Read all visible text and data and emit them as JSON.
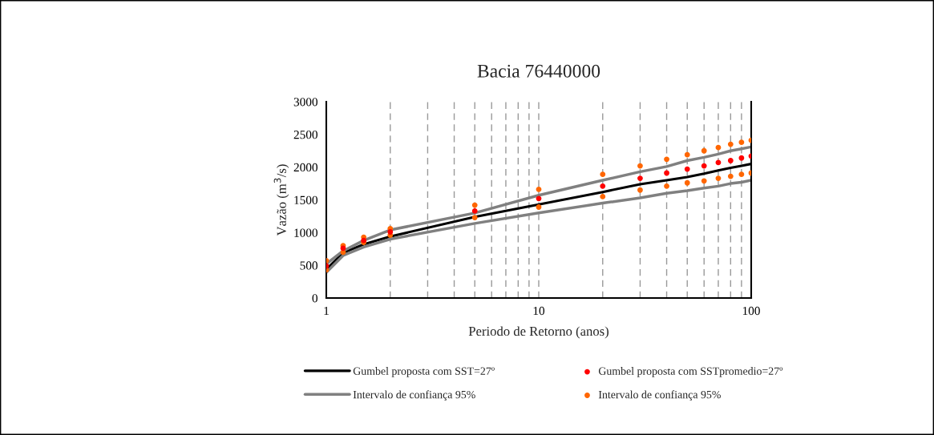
{
  "chart_data": {
    "type": "line",
    "title": "Bacia 76440000",
    "xlabel": "Periodo de Retorno (anos)",
    "ylabel": "Vazão (m$^{3}$/s)",
    "x": [
      1,
      1.2,
      1.5,
      2,
      5,
      10,
      20,
      30,
      40,
      50,
      60,
      70,
      80,
      90,
      100
    ],
    "series": [
      {
        "name": "Gumbel proposta com SST=27º",
        "color": "#000000",
        "values": [
          440,
          690,
          820,
          940,
          1240,
          1430,
          1620,
          1740,
          1800,
          1850,
          1900,
          1950,
          1990,
          2020,
          2050
        ]
      },
      {
        "name": "Gumbel proposta com SSTpromedio=27º",
        "type": "scatter",
        "color": "#ff0000",
        "marker": "circle",
        "values": [
          490,
          760,
          880,
          1010,
          1330,
          1520,
          1710,
          1830,
          1910,
          1970,
          2020,
          2070,
          2100,
          2140,
          2170
        ]
      },
      {
        "name": "Intervalo de confiança 95%",
        "color": "#808080",
        "values": [
          520,
          720,
          880,
          1040,
          1300,
          1570,
          1800,
          1930,
          2010,
          2100,
          2150,
          2200,
          2250,
          2280,
          2310
        ]
      },
      {
        "name": "Intervalo de confiança 95%",
        "type": "scatter",
        "color": "#ff6600",
        "marker": "circle",
        "values": [
          570,
          800,
          930,
          1060,
          1420,
          1660,
          1890,
          2020,
          2120,
          2190,
          2250,
          2300,
          2350,
          2380,
          2410
        ]
      },
      {
        "color": "#808080",
        "values": [
          390,
          650,
          780,
          900,
          1140,
          1300,
          1450,
          1530,
          1600,
          1640,
          1680,
          1710,
          1750,
          1770,
          1800
        ]
      },
      {
        "type": "scatter",
        "color": "#ff6600",
        "marker": "circle",
        "values": [
          430,
          700,
          850,
          960,
          1230,
          1390,
          1550,
          1650,
          1710,
          1760,
          1790,
          1830,
          1860,
          1890,
          1910
        ]
      }
    ],
    "log": "x",
    "xlim": [
      1,
      100
    ],
    "ylim": [
      0,
      3000
    ],
    "xticks": [
      1,
      {
        "value": 2,
        "label": null
      },
      {
        "value": 3,
        "label": null
      },
      {
        "value": 4,
        "label": null
      },
      {
        "value": 5,
        "label": null
      },
      {
        "value": 6,
        "label": null
      },
      {
        "value": 7,
        "label": null
      },
      {
        "value": 8,
        "label": null
      },
      {
        "value": 9,
        "label": null
      },
      10,
      {
        "value": 20,
        "label": null
      },
      {
        "value": 30,
        "label": null
      },
      {
        "value": 40,
        "label": null
      },
      {
        "value": 50,
        "label": null
      },
      {
        "value": 60,
        "label": null
      },
      {
        "value": 70,
        "label": null
      },
      {
        "value": 80,
        "label": null
      },
      {
        "value": 90,
        "label": null
      },
      100
    ],
    "yticks": [
      0,
      500,
      1000,
      1500,
      2000,
      2500,
      3000
    ],
    "grid": "x",
    "legend": "bottom"
  }
}
